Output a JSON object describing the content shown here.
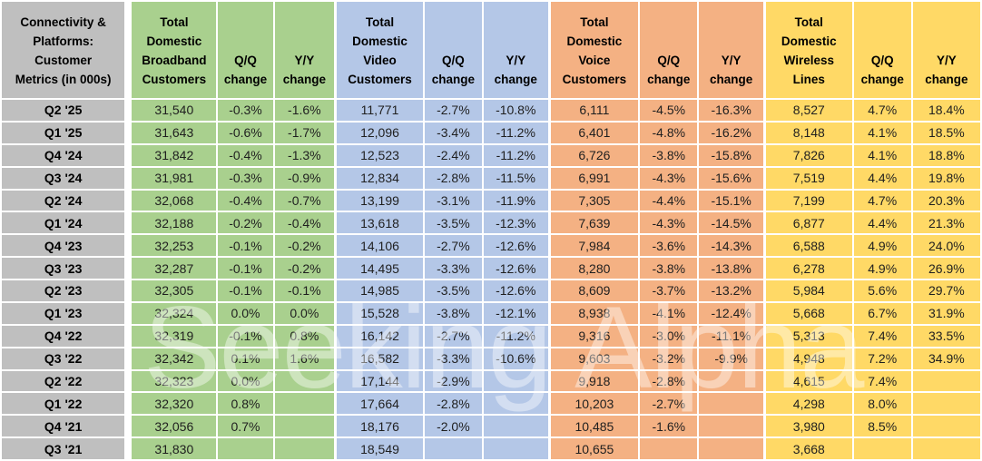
{
  "watermark": {
    "text": "Seeking Alpha"
  },
  "colors": {
    "label_gray": "#BFBFBF",
    "broadband_green": "#A9D08E",
    "video_blue": "#B4C7E7",
    "voice_orange": "#F4B183",
    "wireless_yellow": "#FFD966",
    "gridline_white": "#FFFFFF",
    "text_black": "#1F1F1F"
  },
  "chart_data": {
    "type": "table",
    "title": "Connectivity & Platforms: Customer Metrics (in 000s)",
    "corner_header": "Connectivity &\nPlatforms:\nCustomer\nMetrics (in 000s)",
    "groups": [
      {
        "id": "broadband",
        "total_header": "Total\nDomestic\nBroadband\nCustomers",
        "qq_header": "Q/Q\nchange",
        "yy_header": "Y/Y\nchange",
        "fill": "#A9D08E"
      },
      {
        "id": "video",
        "total_header": "Total\nDomestic\nVideo\nCustomers",
        "qq_header": "Q/Q\nchange",
        "yy_header": "Y/Y\nchange",
        "fill": "#B4C7E7"
      },
      {
        "id": "voice",
        "total_header": "Total\nDomestic\nVoice\nCustomers",
        "qq_header": "Q/Q\nchange",
        "yy_header": "Y/Y\nchange",
        "fill": "#F4B183"
      },
      {
        "id": "wireless",
        "total_header": "Total\nDomestic\nWireless\nLines",
        "qq_header": "Q/Q\nchange",
        "yy_header": "Y/Y\nchange",
        "fill": "#FFD966"
      }
    ],
    "rows": [
      {
        "label": "Q2 '25",
        "broadband": [
          "31,540",
          "-0.3%",
          "-1.6%"
        ],
        "video": [
          "11,771",
          "-2.7%",
          "-10.8%"
        ],
        "voice": [
          "6,111",
          "-4.5%",
          "-16.3%"
        ],
        "wireless": [
          "8,527",
          "4.7%",
          "18.4%"
        ]
      },
      {
        "label": "Q1 '25",
        "broadband": [
          "31,643",
          "-0.6%",
          "-1.7%"
        ],
        "video": [
          "12,096",
          "-3.4%",
          "-11.2%"
        ],
        "voice": [
          "6,401",
          "-4.8%",
          "-16.2%"
        ],
        "wireless": [
          "8,148",
          "4.1%",
          "18.5%"
        ]
      },
      {
        "label": "Q4 '24",
        "broadband": [
          "31,842",
          "-0.4%",
          "-1.3%"
        ],
        "video": [
          "12,523",
          "-2.4%",
          "-11.2%"
        ],
        "voice": [
          "6,726",
          "-3.8%",
          "-15.8%"
        ],
        "wireless": [
          "7,826",
          "4.1%",
          "18.8%"
        ]
      },
      {
        "label": "Q3 '24",
        "broadband": [
          "31,981",
          "-0.3%",
          "-0.9%"
        ],
        "video": [
          "12,834",
          "-2.8%",
          "-11.5%"
        ],
        "voice": [
          "6,991",
          "-4.3%",
          "-15.6%"
        ],
        "wireless": [
          "7,519",
          "4.4%",
          "19.8%"
        ]
      },
      {
        "label": "Q2 '24",
        "broadband": [
          "32,068",
          "-0.4%",
          "-0.7%"
        ],
        "video": [
          "13,199",
          "-3.1%",
          "-11.9%"
        ],
        "voice": [
          "7,305",
          "-4.4%",
          "-15.1%"
        ],
        "wireless": [
          "7,199",
          "4.7%",
          "20.3%"
        ]
      },
      {
        "label": "Q1 '24",
        "broadband": [
          "32,188",
          "-0.2%",
          "-0.4%"
        ],
        "video": [
          "13,618",
          "-3.5%",
          "-12.3%"
        ],
        "voice": [
          "7,639",
          "-4.3%",
          "-14.5%"
        ],
        "wireless": [
          "6,877",
          "4.4%",
          "21.3%"
        ]
      },
      {
        "label": "Q4 '23",
        "broadband": [
          "32,253",
          "-0.1%",
          "-0.2%"
        ],
        "video": [
          "14,106",
          "-2.7%",
          "-12.6%"
        ],
        "voice": [
          "7,984",
          "-3.6%",
          "-14.3%"
        ],
        "wireless": [
          "6,588",
          "4.9%",
          "24.0%"
        ]
      },
      {
        "label": "Q3 '23",
        "broadband": [
          "32,287",
          "-0.1%",
          "-0.2%"
        ],
        "video": [
          "14,495",
          "-3.3%",
          "-12.6%"
        ],
        "voice": [
          "8,280",
          "-3.8%",
          "-13.8%"
        ],
        "wireless": [
          "6,278",
          "4.9%",
          "26.9%"
        ]
      },
      {
        "label": "Q2 '23",
        "broadband": [
          "32,305",
          "-0.1%",
          "-0.1%"
        ],
        "video": [
          "14,985",
          "-3.5%",
          "-12.6%"
        ],
        "voice": [
          "8,609",
          "-3.7%",
          "-13.2%"
        ],
        "wireless": [
          "5,984",
          "5.6%",
          "29.7%"
        ]
      },
      {
        "label": "Q1 '23",
        "broadband": [
          "32,324",
          "0.0%",
          "0.0%"
        ],
        "video": [
          "15,528",
          "-3.8%",
          "-12.1%"
        ],
        "voice": [
          "8,938",
          "-4.1%",
          "-12.4%"
        ],
        "wireless": [
          "5,668",
          "6.7%",
          "31.9%"
        ]
      },
      {
        "label": "Q4 '22",
        "broadband": [
          "32,319",
          "-0.1%",
          "0.8%"
        ],
        "video": [
          "16,142",
          "-2.7%",
          "-11.2%"
        ],
        "voice": [
          "9,316",
          "-3.0%",
          "-11.1%"
        ],
        "wireless": [
          "5,313",
          "7.4%",
          "33.5%"
        ]
      },
      {
        "label": "Q3 '22",
        "broadband": [
          "32,342",
          "0.1%",
          "1.6%"
        ],
        "video": [
          "16,582",
          "-3.3%",
          "-10.6%"
        ],
        "voice": [
          "9,603",
          "-3.2%",
          "-9.9%"
        ],
        "wireless": [
          "4,948",
          "7.2%",
          "34.9%"
        ]
      },
      {
        "label": "Q2 '22",
        "broadband": [
          "32,323",
          "0.0%",
          ""
        ],
        "video": [
          "17,144",
          "-2.9%",
          ""
        ],
        "voice": [
          "9,918",
          "-2.8%",
          ""
        ],
        "wireless": [
          "4,615",
          "7.4%",
          ""
        ]
      },
      {
        "label": "Q1 '22",
        "broadband": [
          "32,320",
          "0.8%",
          ""
        ],
        "video": [
          "17,664",
          "-2.8%",
          ""
        ],
        "voice": [
          "10,203",
          "-2.7%",
          ""
        ],
        "wireless": [
          "4,298",
          "8.0%",
          ""
        ]
      },
      {
        "label": "Q4 '21",
        "broadband": [
          "32,056",
          "0.7%",
          ""
        ],
        "video": [
          "18,176",
          "-2.0%",
          ""
        ],
        "voice": [
          "10,485",
          "-1.6%",
          ""
        ],
        "wireless": [
          "3,980",
          "8.5%",
          ""
        ]
      },
      {
        "label": "Q3 '21",
        "broadband": [
          "31,830",
          "",
          ""
        ],
        "video": [
          "18,549",
          "",
          ""
        ],
        "voice": [
          "10,655",
          "",
          ""
        ],
        "wireless": [
          "3,668",
          "",
          ""
        ]
      }
    ]
  }
}
